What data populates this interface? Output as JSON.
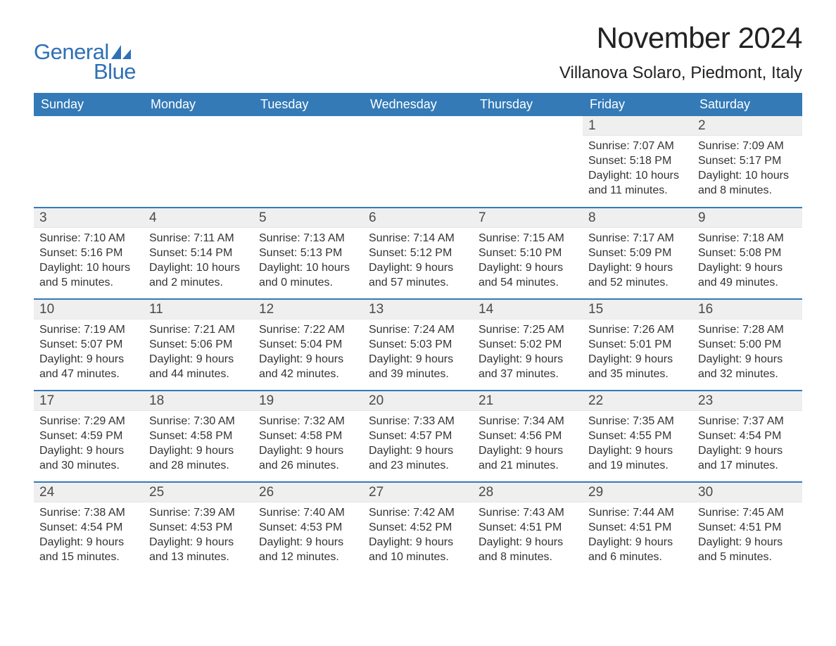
{
  "logo": {
    "text1": "General",
    "text2": "Blue",
    "brand_color": "#2f70b6"
  },
  "header": {
    "month_title": "November 2024",
    "location": "Villanova Solaro, Piedmont, Italy",
    "title_fontsize": 42,
    "location_fontsize": 24,
    "text_color": "#222222"
  },
  "calendar": {
    "header_bg": "#337ab7",
    "header_text_color": "#ffffff",
    "daynum_bg": "#efefef",
    "row_divider_color": "#337ab7",
    "body_text_color": "#333333",
    "body_fontsize": 16,
    "daynum_fontsize": 19,
    "columns": [
      "Sunday",
      "Monday",
      "Tuesday",
      "Wednesday",
      "Thursday",
      "Friday",
      "Saturday"
    ],
    "weeks": [
      [
        {
          "empty": true
        },
        {
          "empty": true
        },
        {
          "empty": true
        },
        {
          "empty": true
        },
        {
          "empty": true
        },
        {
          "day": "1",
          "sunrise": "7:07 AM",
          "sunset": "5:18 PM",
          "daylight": "10 hours and 11 minutes."
        },
        {
          "day": "2",
          "sunrise": "7:09 AM",
          "sunset": "5:17 PM",
          "daylight": "10 hours and 8 minutes."
        }
      ],
      [
        {
          "day": "3",
          "sunrise": "7:10 AM",
          "sunset": "5:16 PM",
          "daylight": "10 hours and 5 minutes."
        },
        {
          "day": "4",
          "sunrise": "7:11 AM",
          "sunset": "5:14 PM",
          "daylight": "10 hours and 2 minutes."
        },
        {
          "day": "5",
          "sunrise": "7:13 AM",
          "sunset": "5:13 PM",
          "daylight": "10 hours and 0 minutes."
        },
        {
          "day": "6",
          "sunrise": "7:14 AM",
          "sunset": "5:12 PM",
          "daylight": "9 hours and 57 minutes."
        },
        {
          "day": "7",
          "sunrise": "7:15 AM",
          "sunset": "5:10 PM",
          "daylight": "9 hours and 54 minutes."
        },
        {
          "day": "8",
          "sunrise": "7:17 AM",
          "sunset": "5:09 PM",
          "daylight": "9 hours and 52 minutes."
        },
        {
          "day": "9",
          "sunrise": "7:18 AM",
          "sunset": "5:08 PM",
          "daylight": "9 hours and 49 minutes."
        }
      ],
      [
        {
          "day": "10",
          "sunrise": "7:19 AM",
          "sunset": "5:07 PM",
          "daylight": "9 hours and 47 minutes."
        },
        {
          "day": "11",
          "sunrise": "7:21 AM",
          "sunset": "5:06 PM",
          "daylight": "9 hours and 44 minutes."
        },
        {
          "day": "12",
          "sunrise": "7:22 AM",
          "sunset": "5:04 PM",
          "daylight": "9 hours and 42 minutes."
        },
        {
          "day": "13",
          "sunrise": "7:24 AM",
          "sunset": "5:03 PM",
          "daylight": "9 hours and 39 minutes."
        },
        {
          "day": "14",
          "sunrise": "7:25 AM",
          "sunset": "5:02 PM",
          "daylight": "9 hours and 37 minutes."
        },
        {
          "day": "15",
          "sunrise": "7:26 AM",
          "sunset": "5:01 PM",
          "daylight": "9 hours and 35 minutes."
        },
        {
          "day": "16",
          "sunrise": "7:28 AM",
          "sunset": "5:00 PM",
          "daylight": "9 hours and 32 minutes."
        }
      ],
      [
        {
          "day": "17",
          "sunrise": "7:29 AM",
          "sunset": "4:59 PM",
          "daylight": "9 hours and 30 minutes."
        },
        {
          "day": "18",
          "sunrise": "7:30 AM",
          "sunset": "4:58 PM",
          "daylight": "9 hours and 28 minutes."
        },
        {
          "day": "19",
          "sunrise": "7:32 AM",
          "sunset": "4:58 PM",
          "daylight": "9 hours and 26 minutes."
        },
        {
          "day": "20",
          "sunrise": "7:33 AM",
          "sunset": "4:57 PM",
          "daylight": "9 hours and 23 minutes."
        },
        {
          "day": "21",
          "sunrise": "7:34 AM",
          "sunset": "4:56 PM",
          "daylight": "9 hours and 21 minutes."
        },
        {
          "day": "22",
          "sunrise": "7:35 AM",
          "sunset": "4:55 PM",
          "daylight": "9 hours and 19 minutes."
        },
        {
          "day": "23",
          "sunrise": "7:37 AM",
          "sunset": "4:54 PM",
          "daylight": "9 hours and 17 minutes."
        }
      ],
      [
        {
          "day": "24",
          "sunrise": "7:38 AM",
          "sunset": "4:54 PM",
          "daylight": "9 hours and 15 minutes."
        },
        {
          "day": "25",
          "sunrise": "7:39 AM",
          "sunset": "4:53 PM",
          "daylight": "9 hours and 13 minutes."
        },
        {
          "day": "26",
          "sunrise": "7:40 AM",
          "sunset": "4:53 PM",
          "daylight": "9 hours and 12 minutes."
        },
        {
          "day": "27",
          "sunrise": "7:42 AM",
          "sunset": "4:52 PM",
          "daylight": "9 hours and 10 minutes."
        },
        {
          "day": "28",
          "sunrise": "7:43 AM",
          "sunset": "4:51 PM",
          "daylight": "9 hours and 8 minutes."
        },
        {
          "day": "29",
          "sunrise": "7:44 AM",
          "sunset": "4:51 PM",
          "daylight": "9 hours and 6 minutes."
        },
        {
          "day": "30",
          "sunrise": "7:45 AM",
          "sunset": "4:51 PM",
          "daylight": "9 hours and 5 minutes."
        }
      ]
    ],
    "labels": {
      "sunrise": "Sunrise:",
      "sunset": "Sunset:",
      "daylight": "Daylight:"
    }
  }
}
